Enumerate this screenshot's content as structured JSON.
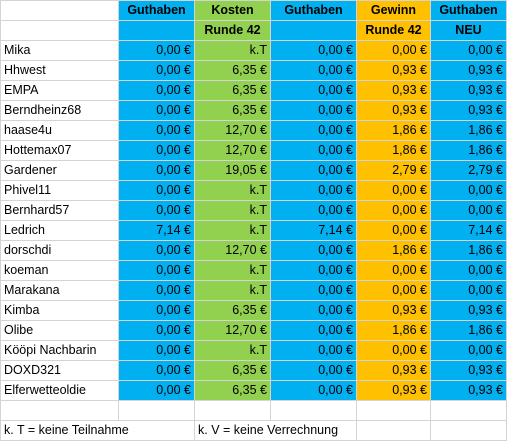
{
  "header": {
    "row1": [
      "",
      "Guthaben",
      "Kosten",
      "Guthaben",
      "Gewinn",
      "Guthaben"
    ],
    "row2": [
      "",
      "",
      "Runde 42",
      "",
      "Runde 42",
      "NEU"
    ]
  },
  "colors": {
    "guthaben": "#00b0f0",
    "kosten": "#92d050",
    "gewinn": "#ffc000"
  },
  "rows": [
    {
      "name": "Mika",
      "guthaben": "0,00 €",
      "kosten": "k.T",
      "guthaben2": "0,00 €",
      "gewinn": "0,00 €",
      "neu": "0,00 €"
    },
    {
      "name": "Hhwest",
      "guthaben": "0,00 €",
      "kosten": "6,35 €",
      "guthaben2": "0,00 €",
      "gewinn": "0,93 €",
      "neu": "0,93 €"
    },
    {
      "name": "EMPA",
      "guthaben": "0,00 €",
      "kosten": "6,35 €",
      "guthaben2": "0,00 €",
      "gewinn": "0,93 €",
      "neu": "0,93 €"
    },
    {
      "name": "Berndheinz68",
      "guthaben": "0,00 €",
      "kosten": "6,35 €",
      "guthaben2": "0,00 €",
      "gewinn": "0,93 €",
      "neu": "0,93 €"
    },
    {
      "name": "haase4u",
      "guthaben": "0,00 €",
      "kosten": "12,70 €",
      "guthaben2": "0,00 €",
      "gewinn": "1,86 €",
      "neu": "1,86 €"
    },
    {
      "name": "Hottemax07",
      "guthaben": "0,00 €",
      "kosten": "12,70 €",
      "guthaben2": "0,00 €",
      "gewinn": "1,86 €",
      "neu": "1,86 €"
    },
    {
      "name": "Gardener",
      "guthaben": "0,00 €",
      "kosten": "19,05 €",
      "guthaben2": "0,00 €",
      "gewinn": "2,79 €",
      "neu": "2,79 €"
    },
    {
      "name": "Phivel11",
      "guthaben": "0,00 €",
      "kosten": "k.T",
      "guthaben2": "0,00 €",
      "gewinn": "0,00 €",
      "neu": "0,00 €"
    },
    {
      "name": "Bernhard57",
      "guthaben": "0,00 €",
      "kosten": "k.T",
      "guthaben2": "0,00 €",
      "gewinn": "0,00 €",
      "neu": "0,00 €"
    },
    {
      "name": "Ledrich",
      "guthaben": "7,14 €",
      "kosten": "k.T",
      "guthaben2": "7,14 €",
      "gewinn": "0,00 €",
      "neu": "7,14 €"
    },
    {
      "name": "dorschdi",
      "guthaben": "0,00 €",
      "kosten": "12,70 €",
      "guthaben2": "0,00 €",
      "gewinn": "1,86 €",
      "neu": "1,86 €"
    },
    {
      "name": "koeman",
      "guthaben": "0,00 €",
      "kosten": "k.T",
      "guthaben2": "0,00 €",
      "gewinn": "0,00 €",
      "neu": "0,00 €"
    },
    {
      "name": "Marakana",
      "guthaben": "0,00 €",
      "kosten": "k.T",
      "guthaben2": "0,00 €",
      "gewinn": "0,00 €",
      "neu": "0,00 €"
    },
    {
      "name": "Kimba",
      "guthaben": "0,00 €",
      "kosten": "6,35 €",
      "guthaben2": "0,00 €",
      "gewinn": "0,93 €",
      "neu": "0,93 €"
    },
    {
      "name": "Olibe",
      "guthaben": "0,00 €",
      "kosten": "12,70 €",
      "guthaben2": "0,00 €",
      "gewinn": "1,86 €",
      "neu": "1,86 €"
    },
    {
      "name": "Kööpi Nachbarin",
      "guthaben": "0,00 €",
      "kosten": "k.T",
      "guthaben2": "0,00 €",
      "gewinn": "0,00 €",
      "neu": "0,00 €"
    },
    {
      "name": "DOXD321",
      "guthaben": "0,00 €",
      "kosten": "6,35 €",
      "guthaben2": "0,00 €",
      "gewinn": "0,93 €",
      "neu": "0,93 €"
    },
    {
      "name": "Elferwetteoldie",
      "guthaben": "0,00 €",
      "kosten": "6,35 €",
      "guthaben2": "0,00 €",
      "gewinn": "0,93 €",
      "neu": "0,93 €"
    }
  ],
  "footer": {
    "note1": "k. T = keine Teilnahme",
    "note2": "k. V = keine Verrechnung"
  }
}
